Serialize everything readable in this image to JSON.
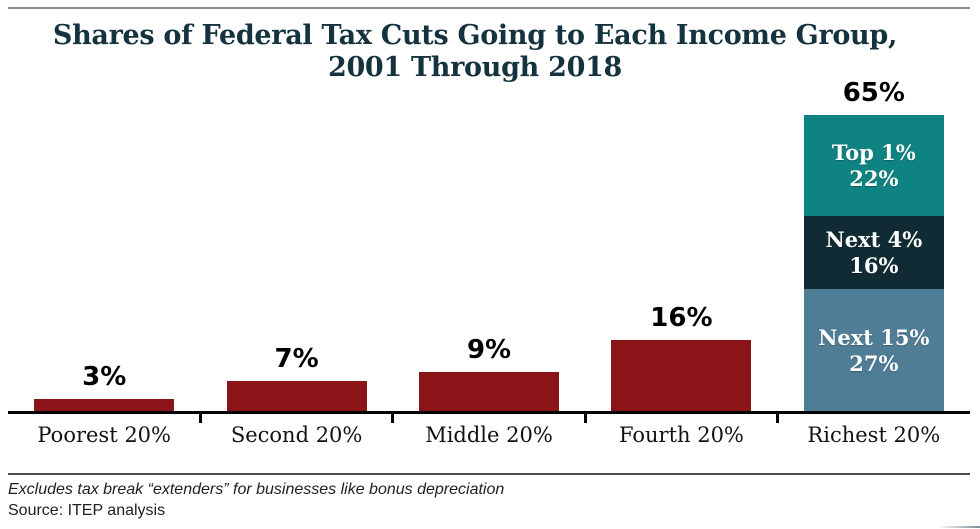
{
  "title": {
    "line1": "Shares of Federal Tax Cuts Going to Each Income Group,",
    "line2": "2001 Through 2018"
  },
  "chart_data": {
    "type": "bar",
    "title": "Shares of Federal Tax Cuts Going to Each Income Group, 2001 Through 2018",
    "unit": "%",
    "ylim": [
      0,
      68
    ],
    "grid": false,
    "legend": "none",
    "categories": [
      "Poorest 20%",
      "Second 20%",
      "Middle 20%",
      "Fourth 20%",
      "Richest 20%"
    ],
    "values": [
      3,
      7,
      9,
      16,
      65
    ],
    "bars": [
      {
        "category": "Poorest 20%",
        "value": 3,
        "label": "3%",
        "color": "#8b1418"
      },
      {
        "category": "Second 20%",
        "value": 7,
        "label": "7%",
        "color": "#8b1418"
      },
      {
        "category": "Middle 20%",
        "value": 9,
        "label": "9%",
        "color": "#8b1418"
      },
      {
        "category": "Fourth 20%",
        "value": 16,
        "label": "16%",
        "color": "#8b1418"
      },
      {
        "category": "Richest 20%",
        "value": 65,
        "label": "65%",
        "segments": [
          {
            "name": "Top 1%",
            "value": 22,
            "label_line1": "Top 1%",
            "label_line2": "22%",
            "color": "#0f8282"
          },
          {
            "name": "Next 4%",
            "value": 16,
            "label_line1": "Next 4%",
            "label_line2": "16%",
            "color": "#102b34"
          },
          {
            "name": "Next 15%",
            "value": 27,
            "label_line1": "Next 15%",
            "label_line2": "27%",
            "color": "#4f7d96"
          }
        ]
      }
    ],
    "colors": {
      "bar_red": "#8b1418",
      "teal": "#0f8282",
      "dark_navy": "#102b34",
      "steel_blue": "#4f7d96",
      "title_navy": "#14333e",
      "axis_black": "#000000"
    }
  },
  "footer": {
    "note": "Excludes tax break “extenders” for businesses like bonus depreciation",
    "source": "Source: ITEP analysis"
  }
}
